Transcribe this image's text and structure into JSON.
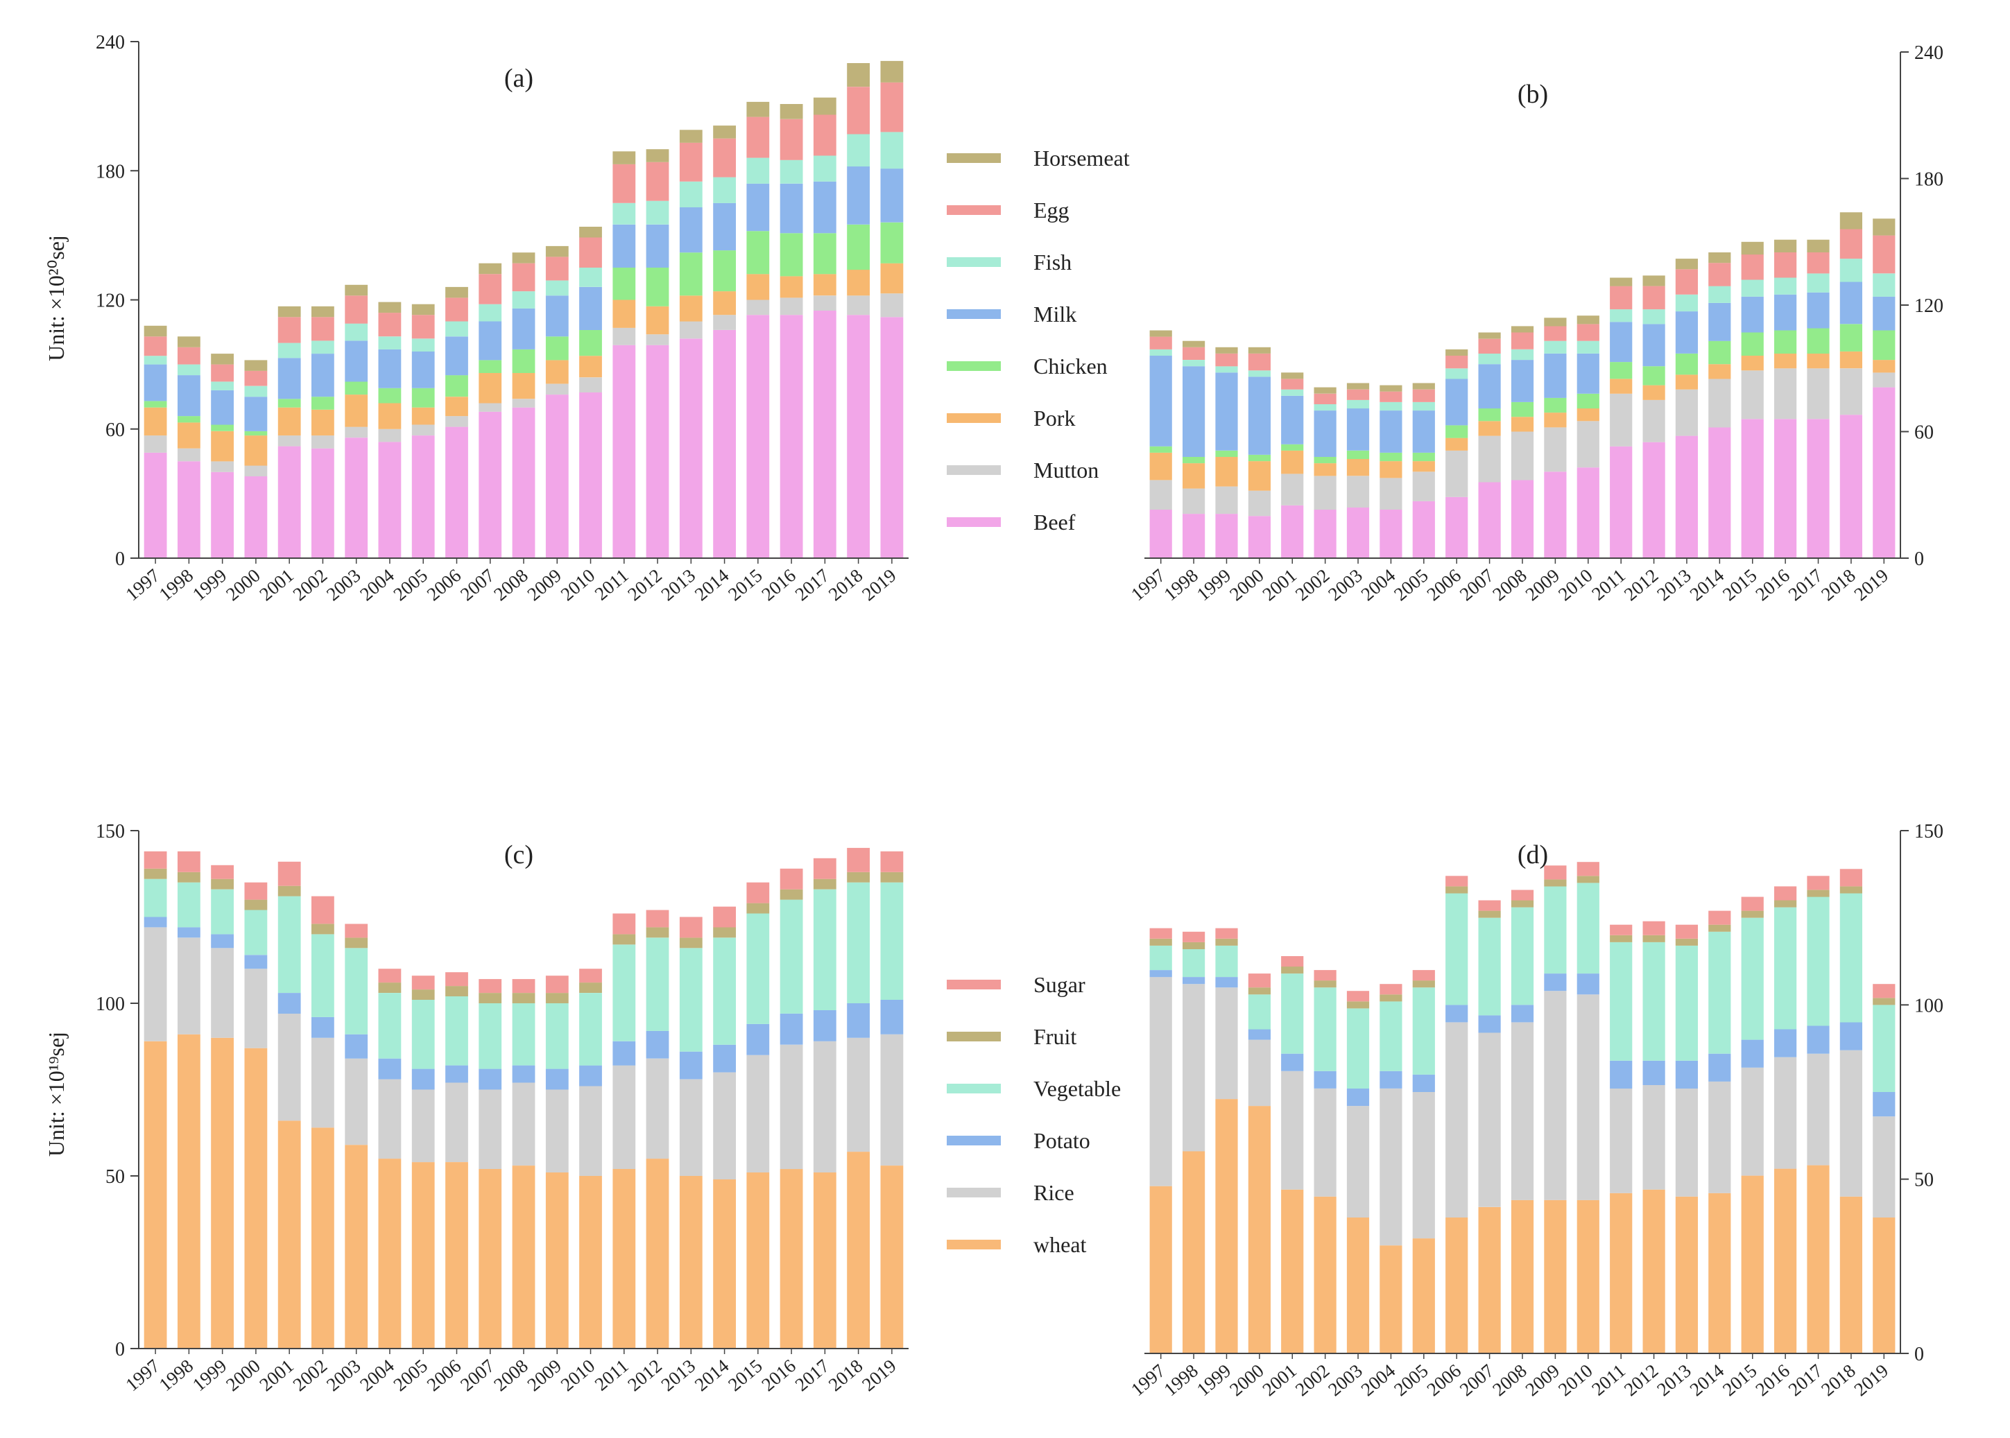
{
  "figure": {
    "unit_top": "Unit:  ×10²⁰sej",
    "unit_bottom": "Unit: ×10¹⁹sej"
  },
  "legend_top": [
    {
      "name": "Horsemeat",
      "color": "#bfb27a"
    },
    {
      "name": "Egg",
      "color": "#f29a98"
    },
    {
      "name": "Fish",
      "color": "#a6ecd6"
    },
    {
      "name": "Milk",
      "color": "#8db6ec"
    },
    {
      "name": "Chicken",
      "color": "#93eb8b"
    },
    {
      "name": "Pork",
      "color": "#f7b870"
    },
    {
      "name": "Mutton",
      "color": "#d1d1d1"
    },
    {
      "name": "Beef",
      "color": "#f2a6e8"
    }
  ],
  "legend_bottom": [
    {
      "name": "Sugar",
      "color": "#f29a98"
    },
    {
      "name": "Fruit",
      "color": "#bfb27a"
    },
    {
      "name": "Vegetable",
      "color": "#a6ecd6"
    },
    {
      "name": "Potato",
      "color": "#8db6ec"
    },
    {
      "name": "Rice",
      "color": "#d1d1d1"
    },
    {
      "name": "wheat",
      "color": "#f9b978"
    }
  ],
  "chart_data": [
    {
      "panel": "(a)",
      "type": "bar",
      "stacked": true,
      "y_axis_side": "left",
      "ylim": [
        0,
        240
      ],
      "yticks": [
        0,
        60,
        120,
        180,
        240
      ],
      "categories": [
        "1997",
        "1998",
        "1999",
        "2000",
        "2001",
        "2002",
        "2003",
        "2004",
        "2005",
        "2006",
        "2007",
        "2008",
        "2009",
        "2010",
        "2011",
        "2012",
        "2013",
        "2014",
        "2015",
        "2016",
        "2017",
        "2018",
        "2019"
      ],
      "series": [
        {
          "name": "Beef",
          "color": "#f2a6e8",
          "values": [
            49,
            45,
            40,
            38,
            52,
            51,
            56,
            54,
            57,
            61,
            68,
            70,
            76,
            77,
            99,
            99,
            102,
            106,
            113,
            113,
            115,
            113,
            112
          ]
        },
        {
          "name": "Mutton",
          "color": "#d1d1d1",
          "values": [
            8,
            6,
            5,
            5,
            5,
            6,
            5,
            6,
            5,
            5,
            4,
            4,
            5,
            7,
            8,
            5,
            8,
            7,
            7,
            8,
            7,
            9,
            11
          ]
        },
        {
          "name": "Pork",
          "color": "#f7b870",
          "values": [
            13,
            12,
            14,
            14,
            13,
            12,
            15,
            12,
            8,
            9,
            14,
            12,
            11,
            10,
            13,
            13,
            12,
            11,
            12,
            10,
            10,
            12,
            14
          ]
        },
        {
          "name": "Chicken",
          "color": "#93eb8b",
          "values": [
            3,
            3,
            3,
            2,
            4,
            6,
            6,
            7,
            9,
            10,
            6,
            11,
            11,
            12,
            15,
            18,
            20,
            19,
            20,
            20,
            19,
            21,
            19
          ]
        },
        {
          "name": "Milk",
          "color": "#8db6ec",
          "values": [
            17,
            19,
            16,
            16,
            19,
            20,
            19,
            18,
            17,
            18,
            18,
            19,
            19,
            20,
            20,
            20,
            21,
            22,
            22,
            23,
            24,
            27,
            25
          ]
        },
        {
          "name": "Fish",
          "color": "#a6ecd6",
          "values": [
            4,
            5,
            4,
            5,
            7,
            6,
            8,
            6,
            6,
            7,
            8,
            8,
            7,
            9,
            10,
            11,
            12,
            12,
            12,
            11,
            12,
            15,
            17
          ]
        },
        {
          "name": "Egg",
          "color": "#f29a98",
          "values": [
            9,
            8,
            8,
            7,
            12,
            11,
            13,
            11,
            11,
            11,
            14,
            13,
            11,
            14,
            18,
            18,
            18,
            18,
            19,
            19,
            19,
            22,
            23
          ]
        },
        {
          "name": "Horsemeat",
          "color": "#bfb27a",
          "values": [
            5,
            5,
            5,
            5,
            5,
            5,
            5,
            5,
            5,
            5,
            5,
            5,
            5,
            5,
            6,
            6,
            6,
            6,
            7,
            7,
            8,
            11,
            10
          ]
        }
      ]
    },
    {
      "panel": "(b)",
      "type": "bar",
      "stacked": true,
      "y_axis_side": "right",
      "ylim": [
        0,
        240
      ],
      "yticks": [
        0,
        60,
        120,
        180,
        240
      ],
      "categories": [
        "1997",
        "1998",
        "1999",
        "2000",
        "2001",
        "2002",
        "2003",
        "2004",
        "2005",
        "2006",
        "2007",
        "2008",
        "2009",
        "2010",
        "2011",
        "2012",
        "2013",
        "2014",
        "2015",
        "2016",
        "2017",
        "2018",
        "2019"
      ],
      "series": [
        {
          "name": "Beef",
          "color": "#f2a6e8",
          "values": [
            23,
            21,
            21,
            20,
            25,
            23,
            24,
            23,
            27,
            29,
            36,
            37,
            41,
            43,
            53,
            55,
            58,
            62,
            66,
            66,
            66,
            68,
            81
          ]
        },
        {
          "name": "Mutton",
          "color": "#d1d1d1",
          "values": [
            14,
            12,
            13,
            12,
            15,
            16,
            15,
            15,
            14,
            22,
            22,
            23,
            21,
            22,
            25,
            20,
            22,
            23,
            23,
            24,
            24,
            22,
            7
          ]
        },
        {
          "name": "Pork",
          "color": "#f7b870",
          "values": [
            13,
            12,
            14,
            14,
            11,
            6,
            8,
            8,
            5,
            6,
            7,
            7,
            7,
            6,
            7,
            7,
            7,
            7,
            7,
            7,
            7,
            8,
            6
          ]
        },
        {
          "name": "Chicken",
          "color": "#93eb8b",
          "values": [
            3,
            3,
            3,
            3,
            3,
            3,
            4,
            4,
            4,
            6,
            6,
            7,
            7,
            7,
            8,
            9,
            10,
            11,
            11,
            11,
            12,
            13,
            14
          ]
        },
        {
          "name": "Milk",
          "color": "#8db6ec",
          "values": [
            43,
            43,
            37,
            37,
            23,
            22,
            20,
            20,
            20,
            22,
            21,
            20,
            21,
            19,
            19,
            20,
            20,
            18,
            17,
            17,
            17,
            20,
            16
          ]
        },
        {
          "name": "Fish",
          "color": "#a6ecd6",
          "values": [
            3,
            3,
            3,
            3,
            3,
            3,
            4,
            4,
            4,
            5,
            5,
            5,
            6,
            6,
            6,
            7,
            8,
            8,
            8,
            8,
            9,
            11,
            11
          ]
        },
        {
          "name": "Egg",
          "color": "#f29a98",
          "values": [
            6,
            6,
            6,
            8,
            5,
            5,
            5,
            5,
            6,
            6,
            7,
            8,
            7,
            8,
            11,
            11,
            12,
            11,
            12,
            12,
            10,
            14,
            18
          ]
        },
        {
          "name": "Horsemeat",
          "color": "#bfb27a",
          "values": [
            3,
            3,
            3,
            3,
            3,
            3,
            3,
            3,
            3,
            3,
            3,
            3,
            4,
            4,
            4,
            5,
            5,
            5,
            6,
            6,
            6,
            8,
            8
          ]
        }
      ]
    },
    {
      "panel": "(c)",
      "type": "bar",
      "stacked": true,
      "y_axis_side": "left",
      "ylim": [
        0,
        150
      ],
      "yticks": [
        0,
        50,
        100,
        150
      ],
      "categories": [
        "1997",
        "1998",
        "1999",
        "2000",
        "2001",
        "2002",
        "2003",
        "2004",
        "2005",
        "2006",
        "2007",
        "2008",
        "2009",
        "2010",
        "2011",
        "2012",
        "2013",
        "2014",
        "2015",
        "2016",
        "2017",
        "2018",
        "2019"
      ],
      "series": [
        {
          "name": "wheat",
          "color": "#f9b978",
          "values": [
            89,
            91,
            90,
            87,
            66,
            64,
            59,
            55,
            54,
            54,
            52,
            53,
            51,
            50,
            52,
            55,
            50,
            49,
            51,
            52,
            51,
            57,
            53
          ]
        },
        {
          "name": "Rice",
          "color": "#d1d1d1",
          "values": [
            33,
            28,
            26,
            23,
            31,
            26,
            25,
            23,
            21,
            23,
            23,
            24,
            24,
            26,
            30,
            29,
            28,
            31,
            34,
            36,
            38,
            33,
            38
          ]
        },
        {
          "name": "Potato",
          "color": "#8db6ec",
          "values": [
            3,
            3,
            4,
            4,
            6,
            6,
            7,
            6,
            6,
            5,
            6,
            5,
            6,
            6,
            7,
            8,
            8,
            8,
            9,
            9,
            9,
            10,
            10
          ]
        },
        {
          "name": "Vegetable",
          "color": "#a6ecd6",
          "values": [
            11,
            13,
            13,
            13,
            28,
            24,
            25,
            19,
            20,
            20,
            19,
            18,
            19,
            21,
            28,
            27,
            30,
            31,
            32,
            33,
            35,
            35,
            34
          ]
        },
        {
          "name": "Fruit",
          "color": "#bfb27a",
          "values": [
            3,
            3,
            3,
            3,
            3,
            3,
            3,
            3,
            3,
            3,
            3,
            3,
            3,
            3,
            3,
            3,
            3,
            3,
            3,
            3,
            3,
            3,
            3
          ]
        },
        {
          "name": "Sugar",
          "color": "#f29a98",
          "values": [
            5,
            6,
            4,
            5,
            7,
            8,
            4,
            4,
            4,
            4,
            4,
            4,
            5,
            4,
            6,
            5,
            6,
            6,
            6,
            6,
            6,
            7,
            6
          ]
        }
      ]
    },
    {
      "panel": "(d)",
      "type": "bar",
      "stacked": true,
      "y_axis_side": "right",
      "ylim": [
        0,
        150
      ],
      "yticks": [
        0,
        50,
        100,
        150
      ],
      "categories": [
        "1997",
        "1998",
        "1999",
        "2000",
        "2001",
        "2002",
        "2003",
        "2004",
        "2005",
        "2006",
        "2007",
        "2008",
        "2009",
        "2010",
        "2011",
        "2012",
        "2013",
        "2014",
        "2015",
        "2016",
        "2017",
        "2018",
        "2019"
      ],
      "series": [
        {
          "name": "wheat",
          "color": "#f9b978",
          "values": [
            48,
            58,
            73,
            71,
            47,
            45,
            39,
            31,
            33,
            39,
            42,
            44,
            44,
            44,
            46,
            47,
            45,
            46,
            51,
            53,
            54,
            45,
            39
          ]
        },
        {
          "name": "Rice",
          "color": "#d1d1d1",
          "values": [
            60,
            48,
            32,
            19,
            34,
            31,
            32,
            45,
            42,
            56,
            50,
            51,
            60,
            59,
            30,
            30,
            31,
            32,
            31,
            32,
            32,
            42,
            29
          ]
        },
        {
          "name": "Potato",
          "color": "#8db6ec",
          "values": [
            2,
            2,
            3,
            3,
            5,
            5,
            5,
            5,
            5,
            5,
            5,
            5,
            5,
            6,
            8,
            7,
            8,
            8,
            8,
            8,
            8,
            8,
            7
          ]
        },
        {
          "name": "Vegetable",
          "color": "#a6ecd6",
          "values": [
            7,
            8,
            9,
            10,
            23,
            24,
            23,
            20,
            25,
            32,
            28,
            28,
            25,
            26,
            34,
            34,
            33,
            35,
            35,
            35,
            37,
            37,
            25
          ]
        },
        {
          "name": "Fruit",
          "color": "#bfb27a",
          "values": [
            2,
            2,
            2,
            2,
            2,
            2,
            2,
            2,
            2,
            2,
            2,
            2,
            2,
            2,
            2,
            2,
            2,
            2,
            2,
            2,
            2,
            2,
            2
          ]
        },
        {
          "name": "Sugar",
          "color": "#f29a98",
          "values": [
            3,
            3,
            3,
            4,
            3,
            3,
            3,
            3,
            3,
            3,
            3,
            3,
            4,
            4,
            3,
            4,
            4,
            4,
            4,
            4,
            4,
            5,
            4
          ]
        }
      ]
    }
  ]
}
